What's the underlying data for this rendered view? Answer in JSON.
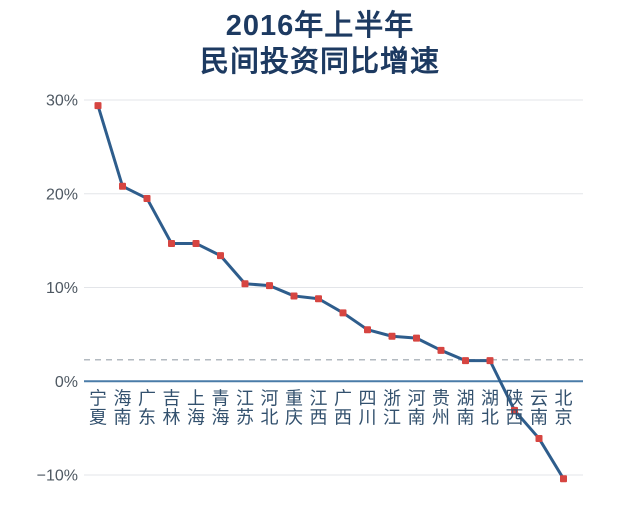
{
  "title": {
    "line1": "2016年上半年",
    "line2": "民间投资同比增速",
    "color": "#1d3a61"
  },
  "chart_data": {
    "type": "line",
    "title": "2016年上半年民间投资同比增速",
    "unit": "%",
    "categories": [
      "宁夏",
      "海南",
      "广东",
      "吉林",
      "上海",
      "青海",
      "江苏",
      "河北",
      "重庆",
      "江西",
      "广西",
      "四川",
      "浙江",
      "河南",
      "贵州",
      "湖南",
      "湖北",
      "陕西",
      "云南",
      "北京"
    ],
    "values": [
      29.4,
      20.8,
      19.5,
      14.7,
      14.7,
      13.4,
      10.4,
      10.2,
      9.1,
      8.8,
      7.3,
      5.5,
      4.8,
      4.6,
      3.3,
      2.2,
      2.2,
      -3.1,
      -6.1,
      -10.4
    ],
    "y_ticks": [
      {
        "value": 30,
        "label": "30%"
      },
      {
        "value": 20,
        "label": "20%"
      },
      {
        "value": 10,
        "label": "10%"
      },
      {
        "value": 0,
        "label": "0%"
      },
      {
        "value": -10,
        "label": "−10%"
      }
    ],
    "ylim": [
      -10,
      30
    ],
    "grid": true,
    "legend": false,
    "reference_line": {
      "value": 2.3,
      "style": "dashed",
      "label": ""
    },
    "zero_axis_value": 0,
    "marker_shape": "square",
    "colors": {
      "line": "#2e5d8c",
      "marker": "#d64541",
      "grid": "#e3e5e9",
      "zero_line": "#4a7ca8",
      "reference_line": "#b3bac0",
      "tick_text": "#4e5862",
      "category_text": "#33516e",
      "background": "#ffffff"
    }
  }
}
